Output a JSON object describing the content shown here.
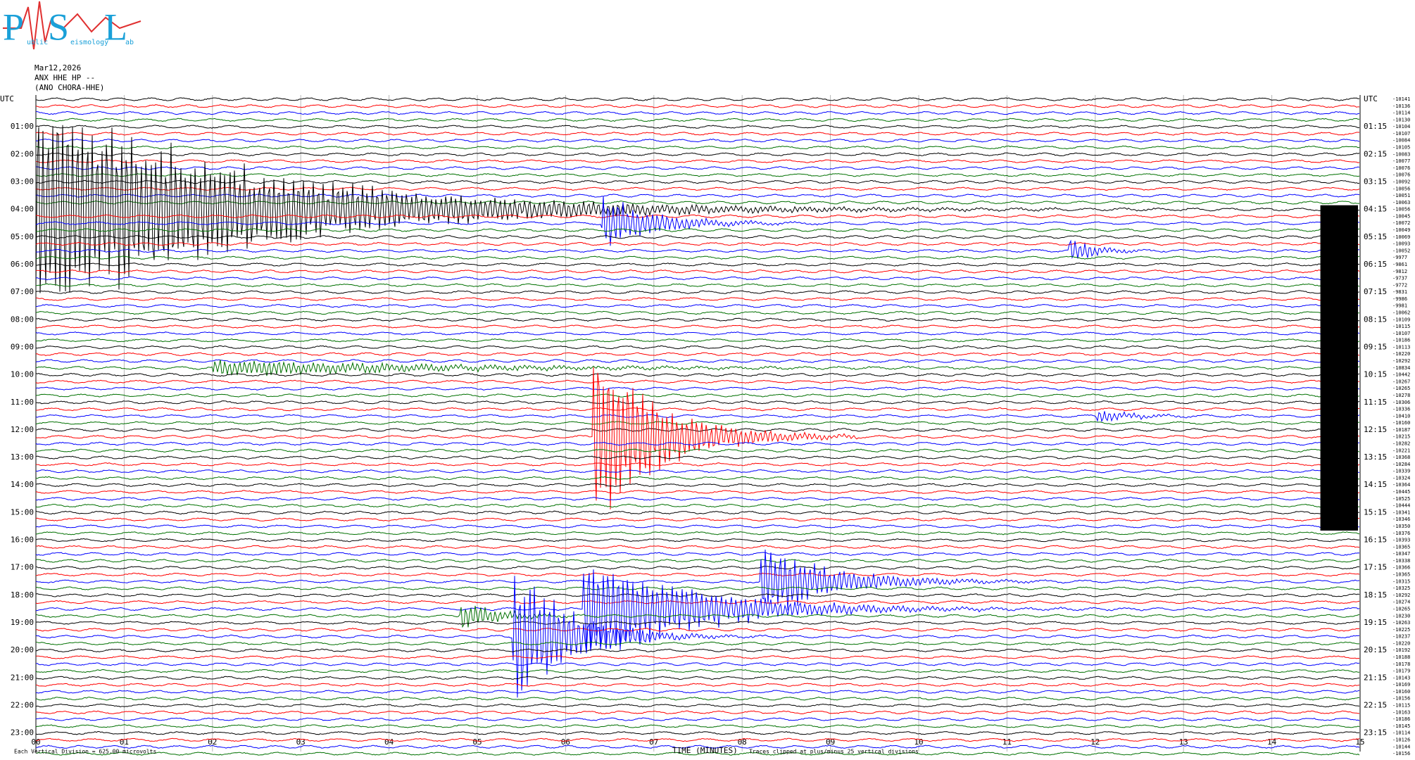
{
  "logo": {
    "letters": [
      "P",
      "S",
      "L"
    ],
    "words": [
      "ublic",
      "eismology",
      "ab"
    ]
  },
  "chart_data": {
    "type": "helicorder",
    "header": [
      "Mar12,2026",
      "ANX HHE HP --",
      "(ANO CHORA-HHE)"
    ],
    "row_colors": [
      "#000000",
      "#ff0000",
      "#0000ff",
      "#007000"
    ],
    "left_labels": [
      "UTC",
      "01:00",
      "02:00",
      "03:00",
      "04:00",
      "05:00",
      "06:00",
      "07:00",
      "08:00",
      "09:00",
      "10:00",
      "11:00",
      "12:00",
      "13:00",
      "14:00",
      "15:00",
      "16:00",
      "17:00",
      "18:00",
      "19:00",
      "20:00",
      "21:00",
      "22:00",
      "23:00"
    ],
    "right_labels": [
      "UTC",
      "01:15",
      "02:15",
      "03:15",
      "04:15",
      "05:15",
      "06:15",
      "07:15",
      "08:15",
      "09:15",
      "10:15",
      "11:15",
      "12:15",
      "13:15",
      "14:15",
      "15:15",
      "16:15",
      "17:15",
      "18:15",
      "19:15",
      "20:15",
      "21:15",
      "22:15",
      "23:15"
    ],
    "row_values": [
      -10141,
      -10136,
      -10114,
      -10130,
      -10104,
      -10107,
      -10084,
      -10105,
      -10083,
      -10077,
      -10076,
      -10076,
      -10092,
      -10056,
      -10051,
      -10063,
      -10056,
      -10045,
      -10072,
      -10049,
      -10069,
      -10093,
      -10052,
      -9977,
      -9861,
      -9812,
      -9737,
      -9772,
      -9831,
      -9986,
      -9981,
      -10062,
      -10109,
      -10115,
      -10107,
      -10186,
      -10113,
      -10220,
      -10292,
      -10834,
      -10442,
      -10267,
      -10265,
      -10278,
      -10306,
      -10336,
      -10410,
      -10160,
      -10187,
      -10215,
      -10282,
      -10221,
      -10368,
      -10284,
      -10339,
      -10324,
      -10364,
      -10445,
      -10525,
      -10444,
      -10341,
      -10346,
      -10350,
      -10376,
      -10393,
      -10365,
      -10347,
      -10338,
      -10366,
      -10365,
      -10315,
      -10325,
      -10292,
      -10274,
      -10265,
      -10230,
      -10263,
      -10225,
      -10237,
      -10220,
      -10192,
      -10188,
      -10178,
      -10179,
      -10143,
      -10169,
      -10160,
      -10156,
      -10115,
      -10163,
      -10186,
      -10145,
      -10114,
      -10126,
      -10144,
      -10156
    ],
    "xlim": [
      0,
      15
    ],
    "xticks": [
      {
        "value": 0,
        "label": "00"
      },
      {
        "value": 1,
        "label": "01"
      },
      {
        "value": 2,
        "label": "02"
      },
      {
        "value": 3,
        "label": "03"
      },
      {
        "value": 4,
        "label": "04"
      },
      {
        "value": 5,
        "label": "05"
      },
      {
        "value": 6,
        "label": "06"
      },
      {
        "value": 7,
        "label": "07"
      },
      {
        "value": 8,
        "label": "08"
      },
      {
        "value": 9,
        "label": "09"
      },
      10,
      11,
      12,
      13,
      14,
      15
    ],
    "x_label": "TIME (MINUTES)",
    "clip_note": "Traces clipped at plus/minus 25 vertical divisions",
    "scale_note": "Each Vertical Division =  625.00 microvolts"
  }
}
